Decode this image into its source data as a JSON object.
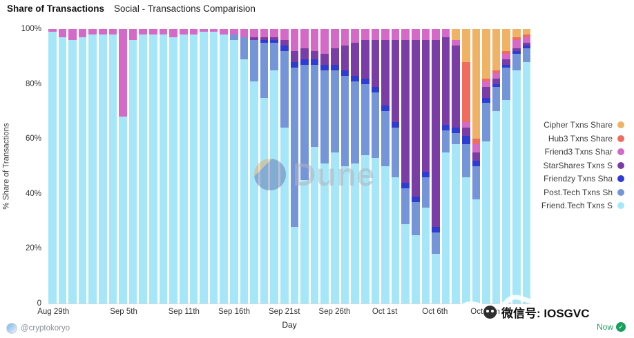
{
  "header": {
    "title": "Share of Transactions",
    "subtitle": "Social - Transactions Comparision"
  },
  "chart_data": {
    "type": "bar",
    "stacked": true,
    "title": "Share of Transactions",
    "subtitle": "Social - Transactions Comparision",
    "xlabel": "Day",
    "ylabel": "% Share of Transactions",
    "ylim": [
      0,
      100
    ],
    "grid": false,
    "legend_position": "right",
    "y_ticks": [
      "100%",
      "80%",
      "60%",
      "40%",
      "20%",
      "0"
    ],
    "x_ticks": [
      {
        "label": "Aug 29th",
        "index": 0
      },
      {
        "label": "Sep 5th",
        "index": 7
      },
      {
        "label": "Sep 11th",
        "index": 13
      },
      {
        "label": "Sep 16th",
        "index": 18
      },
      {
        "label": "Sep 21st",
        "index": 23
      },
      {
        "label": "Sep 26th",
        "index": 28
      },
      {
        "label": "Oct 1st",
        "index": 33
      },
      {
        "label": "Oct 6th",
        "index": 38
      },
      {
        "label": "Oct 11th",
        "index": 43
      }
    ],
    "categories": [
      "Aug 29",
      "Aug 30",
      "Aug 31",
      "Sep 1",
      "Sep 2",
      "Sep 3",
      "Sep 4",
      "Sep 5",
      "Sep 6",
      "Sep 7",
      "Sep 8",
      "Sep 9",
      "Sep 10",
      "Sep 11",
      "Sep 12",
      "Sep 13",
      "Sep 14",
      "Sep 15",
      "Sep 16",
      "Sep 17",
      "Sep 18",
      "Sep 19",
      "Sep 20",
      "Sep 21",
      "Sep 22",
      "Sep 23",
      "Sep 24",
      "Sep 25",
      "Sep 26",
      "Sep 27",
      "Sep 28",
      "Sep 29",
      "Sep 30",
      "Oct 1",
      "Oct 2",
      "Oct 3",
      "Oct 4",
      "Oct 5",
      "Oct 6",
      "Oct 7",
      "Oct 8",
      "Oct 9",
      "Oct 10",
      "Oct 11",
      "Oct 12",
      "Oct 13",
      "Oct 14",
      "Oct 15"
    ],
    "series": [
      {
        "name": "Friend.Tech Txns Share",
        "color": "#a5e7f8",
        "values": [
          99,
          97,
          96,
          97,
          98,
          98,
          98,
          68,
          96,
          98,
          98,
          98,
          97,
          98,
          98,
          99,
          99,
          98,
          96,
          89,
          81,
          75,
          85,
          64,
          28,
          45,
          57,
          51,
          55,
          50,
          51,
          54,
          53,
          50,
          46,
          29,
          25,
          35,
          18,
          55,
          58,
          46,
          38,
          59,
          70,
          74,
          85,
          88
        ]
      },
      {
        "name": "Post.Tech Txns Share",
        "color": "#7495d8",
        "values": [
          0,
          0,
          0,
          0,
          0,
          0,
          0,
          0,
          0,
          0,
          0,
          0,
          0,
          0,
          0,
          0,
          0,
          0,
          2,
          8,
          15,
          20,
          10,
          28,
          58,
          42,
          30,
          34,
          30,
          33,
          30,
          26,
          24,
          20,
          18,
          13,
          12,
          11,
          8,
          8,
          4,
          12,
          12,
          14,
          9,
          12,
          6,
          5
        ]
      },
      {
        "name": "Friendzy Txns Share",
        "color": "#2e3cd4",
        "values": [
          0,
          0,
          0,
          0,
          0,
          0,
          0,
          0,
          0,
          0,
          0,
          0,
          0,
          0,
          0,
          0,
          0,
          0,
          0,
          0,
          0,
          1,
          1,
          2,
          2,
          2,
          2,
          2,
          2,
          2,
          2,
          2,
          2,
          2,
          2,
          2,
          2,
          2,
          2,
          2,
          2,
          3,
          2,
          2,
          1,
          1,
          1,
          1
        ]
      },
      {
        "name": "StarShares Txns Share",
        "color": "#7a3da6",
        "values": [
          0,
          0,
          0,
          0,
          0,
          0,
          0,
          0,
          0,
          0,
          0,
          0,
          0,
          0,
          0,
          0,
          0,
          0,
          0,
          0,
          1,
          1,
          1,
          2,
          4,
          4,
          3,
          4,
          6,
          9,
          12,
          14,
          17,
          24,
          30,
          52,
          57,
          48,
          68,
          32,
          30,
          3,
          3,
          4,
          2,
          2,
          1,
          1
        ]
      },
      {
        "name": "Friend3 Txns Share",
        "color": "#d469c7",
        "values": [
          1,
          3,
          4,
          3,
          2,
          2,
          2,
          32,
          4,
          2,
          2,
          2,
          3,
          2,
          2,
          1,
          1,
          2,
          2,
          3,
          3,
          3,
          3,
          4,
          8,
          7,
          8,
          9,
          7,
          6,
          5,
          4,
          4,
          4,
          4,
          4,
          4,
          4,
          4,
          3,
          2,
          2,
          3,
          2,
          2,
          2,
          3,
          2
        ]
      },
      {
        "name": "Hub3 Txns Share",
        "color": "#f06c5f",
        "values": [
          0,
          0,
          0,
          0,
          0,
          0,
          0,
          0,
          0,
          0,
          0,
          0,
          0,
          0,
          0,
          0,
          0,
          0,
          0,
          0,
          0,
          0,
          0,
          0,
          0,
          0,
          0,
          0,
          0,
          0,
          0,
          0,
          0,
          0,
          0,
          0,
          0,
          0,
          0,
          0,
          0,
          22,
          2,
          1,
          1,
          1,
          1,
          1
        ]
      },
      {
        "name": "Cipher Txns Share",
        "color": "#f0b264",
        "values": [
          0,
          0,
          0,
          0,
          0,
          0,
          0,
          0,
          0,
          0,
          0,
          0,
          0,
          0,
          0,
          0,
          0,
          0,
          0,
          0,
          0,
          0,
          0,
          0,
          0,
          0,
          0,
          0,
          0,
          0,
          0,
          0,
          0,
          0,
          0,
          0,
          0,
          0,
          0,
          0,
          4,
          12,
          40,
          18,
          15,
          8,
          3,
          2
        ]
      }
    ]
  },
  "legend": {
    "items": [
      {
        "label": "Cipher Txns Share",
        "color": "#f0b264"
      },
      {
        "label": "Hub3 Txns Share",
        "color": "#f06c5f"
      },
      {
        "label": "Friend3 Txns Shar",
        "color": "#d469c7"
      },
      {
        "label": "StarShares Txns S",
        "color": "#7a3da6"
      },
      {
        "label": "Friendzy Txns Sha",
        "color": "#2e3cd4"
      },
      {
        "label": "Post.Tech Txns Sh",
        "color": "#7495d8"
      },
      {
        "label": "Friend.Tech Txns S",
        "color": "#a5e7f8"
      }
    ]
  },
  "watermark": {
    "brand": "Dune"
  },
  "overlay": {
    "wechat_label": "微信号: IOSGVC"
  },
  "footer": {
    "handle": "@cryptokoryo",
    "status_label": "Now",
    "status_check": "✓"
  }
}
